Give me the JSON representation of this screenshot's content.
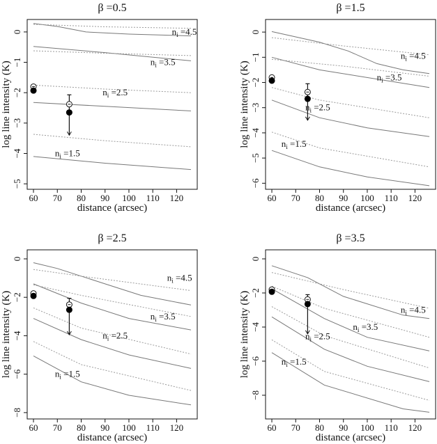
{
  "chart_data": [
    {
      "type": "line",
      "title": "β =0.5",
      "xlabel": "distance (arcsec)",
      "ylabel": "log line intensity (K)",
      "xlim": [
        57.36,
        128.64
      ],
      "ylim": [
        -5.18,
        0.41
      ],
      "xticks": [
        60,
        70,
        80,
        90,
        100,
        110,
        120
      ],
      "yticks": [
        0,
        -1,
        -2,
        -3,
        -4,
        -5
      ],
      "series": [
        {
          "ni": "4.5",
          "style": "solid",
          "x": [
            60,
            70,
            82,
            100,
            126
          ],
          "y": [
            0.28,
            0.18,
            0.0,
            -0.07,
            -0.13
          ]
        },
        {
          "ni": "4.5",
          "style": "dotted",
          "x": [
            60,
            90,
            126
          ],
          "y": [
            0.25,
            0.17,
            0.12
          ]
        },
        {
          "ni": "3.5",
          "style": "solid",
          "x": [
            60,
            90,
            126
          ],
          "y": [
            -0.48,
            -0.68,
            -0.95
          ]
        },
        {
          "ni": "3.5",
          "style": "dotted",
          "x": [
            60,
            90,
            126
          ],
          "y": [
            -0.62,
            -0.7,
            -0.78
          ]
        },
        {
          "ni": "2.5",
          "style": "dotted",
          "x": [
            60,
            90,
            126
          ],
          "y": [
            -1.75,
            -1.88,
            -2.0
          ]
        },
        {
          "ni": "2.5",
          "style": "solid",
          "x": [
            60,
            90,
            126
          ],
          "y": [
            -2.32,
            -2.45,
            -2.6
          ]
        },
        {
          "ni": "1.5",
          "style": "dotted",
          "x": [
            60,
            90,
            126
          ],
          "y": [
            -3.37,
            -3.58,
            -3.78
          ]
        },
        {
          "ni": "1.5",
          "style": "solid",
          "x": [
            60,
            90,
            126
          ],
          "y": [
            -4.1,
            -4.32,
            -4.53
          ]
        }
      ],
      "curve_labels": [
        {
          "base": "n",
          "sub": "i",
          "text": " =4.5",
          "x": 118,
          "y": 0.0
        },
        {
          "base": "n",
          "sub": "i",
          "text": " =3.5",
          "x": 109,
          "y": -1.0
        },
        {
          "base": "n",
          "sub": "i",
          "text": " =2.5",
          "x": 89,
          "y": -2.0
        },
        {
          "base": "n",
          "sub": "i",
          "text": " =1.5",
          "x": 69,
          "y": -4.0
        }
      ],
      "observed": {
        "filled": [
          {
            "x": 60,
            "y": -1.93
          },
          {
            "x": 75,
            "y": -2.65
          }
        ],
        "open": [
          {
            "x": 60,
            "y": -1.8
          },
          {
            "x": 75,
            "y": -2.38
          }
        ],
        "upper_limit_bar": {
          "x": 75,
          "top": -2.07,
          "bottom": -3.4
        }
      }
    },
    {
      "type": "line",
      "title": "β =1.5",
      "xlabel": "distance (arcsec)",
      "ylabel": "log line intensity (K)",
      "xlim": [
        57.36,
        128.64
      ],
      "ylim": [
        -6.24,
        0.5
      ],
      "xticks": [
        60,
        70,
        80,
        90,
        100,
        110,
        120
      ],
      "yticks": [
        0,
        -1,
        -2,
        -3,
        -4,
        -5,
        -6
      ],
      "series": [
        {
          "ni": "4.5",
          "style": "solid",
          "x": [
            60,
            80,
            92,
            104,
            115,
            126
          ],
          "y": [
            0.02,
            -0.4,
            -0.75,
            -1.25,
            -1.5,
            -1.65
          ]
        },
        {
          "ni": "4.5",
          "style": "dotted",
          "x": [
            60,
            90,
            126
          ],
          "y": [
            -0.22,
            -0.55,
            -0.9
          ]
        },
        {
          "ni": "3.5",
          "style": "solid",
          "x": [
            60,
            80,
            126
          ],
          "y": [
            -1.0,
            -1.5,
            -2.2
          ]
        },
        {
          "ni": "3.5",
          "style": "dotted",
          "x": [
            60,
            90,
            126
          ],
          "y": [
            -1.08,
            -1.35,
            -1.75
          ]
        },
        {
          "ni": "2.5",
          "style": "dotted",
          "x": [
            60,
            80,
            126
          ],
          "y": [
            -2.2,
            -2.7,
            -3.4
          ]
        },
        {
          "ni": "2.5",
          "style": "solid",
          "x": [
            60,
            80,
            100,
            126
          ],
          "y": [
            -2.7,
            -3.4,
            -3.8,
            -4.15
          ]
        },
        {
          "ni": "1.5",
          "style": "dotted",
          "x": [
            60,
            80,
            126
          ],
          "y": [
            -3.97,
            -4.6,
            -5.35
          ]
        },
        {
          "ni": "1.5",
          "style": "solid",
          "x": [
            60,
            80,
            100,
            126
          ],
          "y": [
            -4.7,
            -5.35,
            -5.75,
            -6.1
          ]
        }
      ],
      "curve_labels": [
        {
          "base": "n",
          "sub": "i",
          "text": " =4.5",
          "x": 114,
          "y": -0.95
        },
        {
          "base": "n",
          "sub": "i",
          "text": " =3.5",
          "x": 104,
          "y": -1.8
        },
        {
          "base": "n",
          "sub": "i",
          "text": " =2.5",
          "x": 74,
          "y": -3.0
        },
        {
          "base": "n",
          "sub": "i",
          "text": " =1.5",
          "x": 64,
          "y": -4.45
        }
      ],
      "observed": {
        "filled": [
          {
            "x": 60,
            "y": -1.93
          },
          {
            "x": 75,
            "y": -2.65
          }
        ],
        "open": [
          {
            "x": 60,
            "y": -1.8
          },
          {
            "x": 75,
            "y": -2.38
          }
        ],
        "upper_limit_bar": {
          "x": 75,
          "top": -2.05,
          "bottom": -3.5
        }
      }
    },
    {
      "type": "line",
      "title": "β =2.5",
      "xlabel": "distance (arcsec)",
      "ylabel": "log line intensity (K)",
      "xlim": [
        57.36,
        128.64
      ],
      "ylim": [
        -8.33,
        0.47
      ],
      "xticks": [
        60,
        70,
        80,
        90,
        100,
        110,
        120
      ],
      "yticks": [
        0,
        -2,
        -4,
        -6,
        -8
      ],
      "series": [
        {
          "ni": "4.5",
          "style": "solid",
          "x": [
            60,
            70,
            80,
            90,
            105,
            126
          ],
          "y": [
            -0.2,
            -0.5,
            -0.9,
            -1.3,
            -1.9,
            -2.4
          ]
        },
        {
          "ni": "4.5",
          "style": "dotted",
          "x": [
            60,
            80,
            126
          ],
          "y": [
            -0.55,
            -0.9,
            -1.65
          ]
        },
        {
          "ni": "3.5",
          "style": "solid",
          "x": [
            60,
            80,
            100,
            126
          ],
          "y": [
            -1.3,
            -2.3,
            -3.1,
            -3.7
          ]
        },
        {
          "ni": "3.5",
          "style": "dotted",
          "x": [
            60,
            80,
            126
          ],
          "y": [
            -1.35,
            -1.9,
            -3.0
          ]
        },
        {
          "ni": "2.5",
          "style": "dotted",
          "x": [
            60,
            80,
            126
          ],
          "y": [
            -2.55,
            -3.6,
            -4.95
          ]
        },
        {
          "ni": "2.5",
          "style": "solid",
          "x": [
            60,
            80,
            100,
            126
          ],
          "y": [
            -3.1,
            -4.2,
            -5.0,
            -5.7
          ]
        },
        {
          "ni": "1.5",
          "style": "dotted",
          "x": [
            60,
            80,
            126
          ],
          "y": [
            -4.3,
            -5.5,
            -6.85
          ]
        },
        {
          "ni": "1.5",
          "style": "solid",
          "x": [
            60,
            80,
            100,
            126
          ],
          "y": [
            -5.05,
            -6.4,
            -7.1,
            -7.6
          ]
        }
      ],
      "curve_labels": [
        {
          "base": "n",
          "sub": "i",
          "text": " =4.5",
          "x": 116,
          "y": -1.0
        },
        {
          "base": "n",
          "sub": "i",
          "text": " =3.5",
          "x": 109,
          "y": -3.0
        },
        {
          "base": "n",
          "sub": "i",
          "text": " =2.5",
          "x": 89,
          "y": -4.0
        },
        {
          "base": "n",
          "sub": "i",
          "text": " =1.5",
          "x": 69,
          "y": -6.0
        }
      ],
      "observed": {
        "filled": [
          {
            "x": 60,
            "y": -1.93
          },
          {
            "x": 75,
            "y": -2.65
          }
        ],
        "open": [
          {
            "x": 60,
            "y": -1.8
          },
          {
            "x": 75,
            "y": -2.38
          }
        ],
        "upper_limit_bar": {
          "x": 75,
          "top": -2.05,
          "bottom": -3.95
        }
      }
    },
    {
      "type": "line",
      "title": "β =3.5",
      "xlabel": "distance (arcsec)",
      "ylabel": "log line intensity (K)",
      "xlim": [
        57.36,
        128.64
      ],
      "ylim": [
        -9.39,
        0.53
      ],
      "xticks": [
        60,
        70,
        80,
        90,
        100,
        110,
        120
      ],
      "yticks": [
        0,
        -2,
        -4,
        -6,
        -8
      ],
      "series": [
        {
          "ni": "4.5",
          "style": "solid",
          "x": [
            60,
            75,
            90,
            115,
            126
          ],
          "y": [
            -0.4,
            -1.1,
            -2.2,
            -3.3,
            -3.5
          ]
        },
        {
          "ni": "4.5",
          "style": "dotted",
          "x": [
            60,
            75,
            90,
            126
          ],
          "y": [
            -0.8,
            -1.3,
            -1.8,
            -2.9
          ]
        },
        {
          "ni": "3.5",
          "style": "solid",
          "x": [
            60,
            82,
            100,
            126
          ],
          "y": [
            -1.75,
            -3.5,
            -4.6,
            -5.4
          ]
        },
        {
          "ni": "3.5",
          "style": "dotted",
          "x": [
            60,
            82,
            126
          ],
          "y": [
            -1.6,
            -2.9,
            -4.6
          ]
        },
        {
          "ni": "2.5",
          "style": "dotted",
          "x": [
            60,
            82,
            126
          ],
          "y": [
            -2.8,
            -4.5,
            -6.4
          ]
        },
        {
          "ni": "2.5",
          "style": "solid",
          "x": [
            60,
            82,
            100,
            126
          ],
          "y": [
            -3.4,
            -5.3,
            -6.3,
            -7.2
          ]
        },
        {
          "ni": "1.5",
          "style": "dotted",
          "x": [
            60,
            82,
            126
          ],
          "y": [
            -4.75,
            -6.6,
            -8.3
          ]
        },
        {
          "ni": "1.5",
          "style": "solid",
          "x": [
            60,
            82,
            115,
            126
          ],
          "y": [
            -5.5,
            -7.4,
            -8.8,
            -9.0
          ]
        }
      ],
      "curve_labels": [
        {
          "base": "n",
          "sub": "i",
          "text": " =4.5",
          "x": 114,
          "y": -3.0
        },
        {
          "base": "n",
          "sub": "i",
          "text": " =3.5",
          "x": 94,
          "y": -4.0
        },
        {
          "base": "n",
          "sub": "i",
          "text": " =2.5",
          "x": 74,
          "y": -4.55
        },
        {
          "base": "n",
          "sub": "i",
          "text": " =1.5",
          "x": 64,
          "y": -6.05
        }
      ],
      "observed": {
        "filled": [
          {
            "x": 60,
            "y": -1.93
          },
          {
            "x": 75,
            "y": -2.65
          }
        ],
        "open": [
          {
            "x": 60,
            "y": -1.8
          },
          {
            "x": 75,
            "y": -2.38
          }
        ],
        "upper_limit_bar": {
          "x": 75,
          "top": -2.1,
          "bottom": -4.4
        }
      }
    }
  ]
}
